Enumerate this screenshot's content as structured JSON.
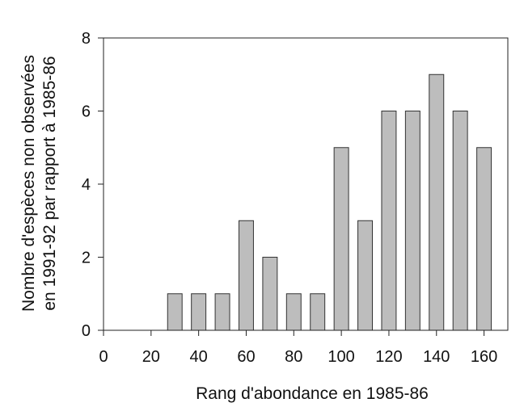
{
  "chart_data": {
    "type": "bar",
    "xlabel": "Rang d'abondance en 1985-86",
    "ylabel_line1": "Nombre d'espèces non observées",
    "ylabel_line2": "en 1991-92 par rapport à 1985-86",
    "x": [
      30,
      40,
      50,
      60,
      70,
      80,
      90,
      100,
      110,
      120,
      130,
      140,
      150,
      160
    ],
    "values": [
      1,
      1,
      1,
      3,
      2,
      1,
      1,
      5,
      3,
      6,
      6,
      7,
      6,
      5
    ],
    "xlim": [
      0,
      170
    ],
    "ylim": [
      0,
      8
    ],
    "xticks": [
      "0",
      "20",
      "40",
      "60",
      "80",
      "100",
      "120",
      "140",
      "160"
    ],
    "yticks": [
      "0",
      "2",
      "4",
      "6",
      "8"
    ],
    "grid": false,
    "bar_color": "#bdbdbd",
    "bar_edge_color": "#333333"
  }
}
